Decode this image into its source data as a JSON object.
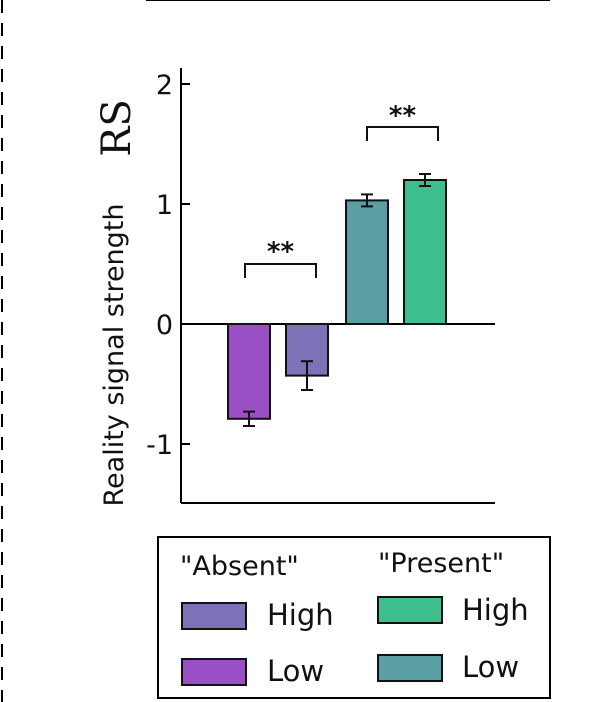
{
  "chart_data": {
    "type": "bar",
    "ylabel": "Reality signal strength",
    "ylabel_symbol": "RS",
    "ylim": [
      -1.5,
      2
    ],
    "yticks": [
      -1,
      0,
      1,
      2
    ],
    "ytick_labels": [
      "-1",
      "0",
      "1",
      "2"
    ],
    "series": [
      {
        "name": "\"Absent\" Low",
        "group": "\"Absent\"",
        "level": "Low",
        "value": -0.79,
        "error": 0.06,
        "color": "#9b4fc6"
      },
      {
        "name": "\"Absent\" High",
        "group": "\"Absent\"",
        "level": "High",
        "value": -0.43,
        "error": 0.12,
        "color": "#7b72b8"
      },
      {
        "name": "\"Present\" Low",
        "group": "\"Present\"",
        "level": "Low",
        "value": 1.03,
        "error": 0.05,
        "color": "#5b9ea4"
      },
      {
        "name": "\"Present\" High",
        "group": "\"Present\"",
        "level": "High",
        "value": 1.2,
        "error": 0.05,
        "color": "#3dc08e"
      }
    ],
    "significance": [
      {
        "between": [
          0,
          1
        ],
        "label": "**"
      },
      {
        "between": [
          2,
          3
        ],
        "label": "**"
      }
    ],
    "legend": {
      "absent_header": "\"Absent\"",
      "present_header": "\"Present\"",
      "high_label": "High",
      "low_label": "Low"
    }
  }
}
